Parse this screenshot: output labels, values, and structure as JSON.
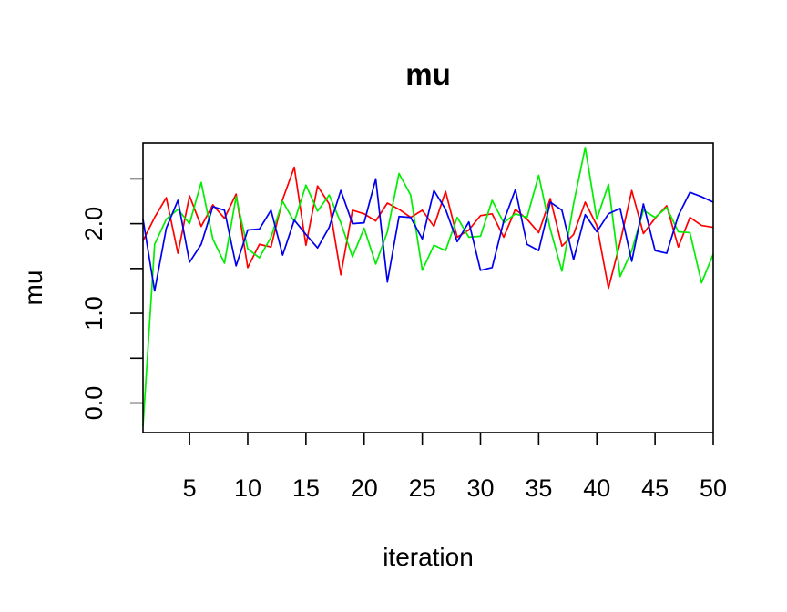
{
  "chart_data": {
    "type": "line",
    "title": "mu",
    "xlabel": "iteration",
    "ylabel": "mu",
    "xlim": [
      1,
      50
    ],
    "ylim": [
      -0.33,
      2.9
    ],
    "xticks": [
      5,
      10,
      15,
      20,
      25,
      30,
      35,
      40,
      45,
      50
    ],
    "xtick_labels": [
      "5",
      "10",
      "15",
      "20",
      "25",
      "30",
      "35",
      "40",
      "45",
      "50"
    ],
    "yticks": [
      0.0,
      0.5,
      1.0,
      1.5,
      2.0,
      2.5
    ],
    "ytick_labels": [
      "0.0",
      "",
      "1.0",
      "",
      "2.0",
      ""
    ],
    "grid": false,
    "legend": "none",
    "x": [
      1,
      2,
      3,
      4,
      5,
      6,
      7,
      8,
      9,
      10,
      11,
      12,
      13,
      14,
      15,
      16,
      17,
      18,
      19,
      20,
      21,
      22,
      23,
      24,
      25,
      26,
      27,
      28,
      29,
      30,
      31,
      32,
      33,
      34,
      35,
      36,
      37,
      38,
      39,
      40,
      41,
      42,
      43,
      44,
      45,
      46,
      47,
      48,
      49,
      50
    ],
    "series": [
      {
        "color": "#ff0000",
        "values": [
          1.81,
          2.07,
          2.29,
          1.67,
          2.31,
          1.97,
          2.21,
          2.06,
          2.33,
          1.51,
          1.77,
          1.74,
          2.27,
          2.63,
          1.76,
          2.42,
          2.22,
          1.43,
          2.15,
          2.11,
          2.03,
          2.23,
          2.16,
          2.07,
          2.15,
          1.97,
          2.36,
          1.85,
          1.93,
          2.09,
          2.11,
          1.85,
          2.16,
          2.05,
          1.9,
          2.28,
          1.75,
          1.88,
          2.24,
          1.98,
          1.28,
          1.79,
          2.37,
          1.89,
          2.06,
          2.2,
          1.74,
          2.07,
          1.98,
          1.96
        ]
      },
      {
        "color": "#00ee00",
        "values": [
          -0.26,
          1.77,
          2.05,
          2.16,
          2.0,
          2.46,
          1.83,
          1.56,
          2.3,
          1.72,
          1.62,
          1.85,
          2.25,
          2.02,
          2.43,
          2.14,
          2.32,
          2.01,
          1.63,
          1.95,
          1.55,
          1.91,
          2.56,
          2.32,
          1.48,
          1.76,
          1.7,
          2.07,
          1.85,
          1.86,
          2.26,
          2.01,
          2.11,
          2.07,
          2.54,
          1.94,
          1.47,
          2.22,
          2.85,
          2.05,
          2.44,
          1.41,
          1.7,
          2.15,
          2.07,
          2.18,
          1.91,
          1.9,
          1.34,
          1.66
        ]
      },
      {
        "color": "#0000ee",
        "values": [
          2.05,
          1.25,
          1.95,
          2.26,
          1.57,
          1.77,
          2.19,
          2.15,
          1.53,
          1.93,
          1.94,
          2.15,
          1.65,
          2.04,
          1.88,
          1.73,
          1.96,
          2.37,
          2.0,
          2.01,
          2.5,
          1.35,
          2.08,
          2.07,
          1.83,
          2.37,
          2.16,
          1.8,
          2.02,
          1.48,
          1.51,
          2.03,
          2.38,
          1.77,
          1.7,
          2.24,
          2.15,
          1.6,
          2.1,
          1.91,
          2.11,
          2.17,
          1.58,
          2.22,
          1.7,
          1.67,
          2.09,
          2.35,
          2.3,
          2.24
        ]
      }
    ]
  }
}
